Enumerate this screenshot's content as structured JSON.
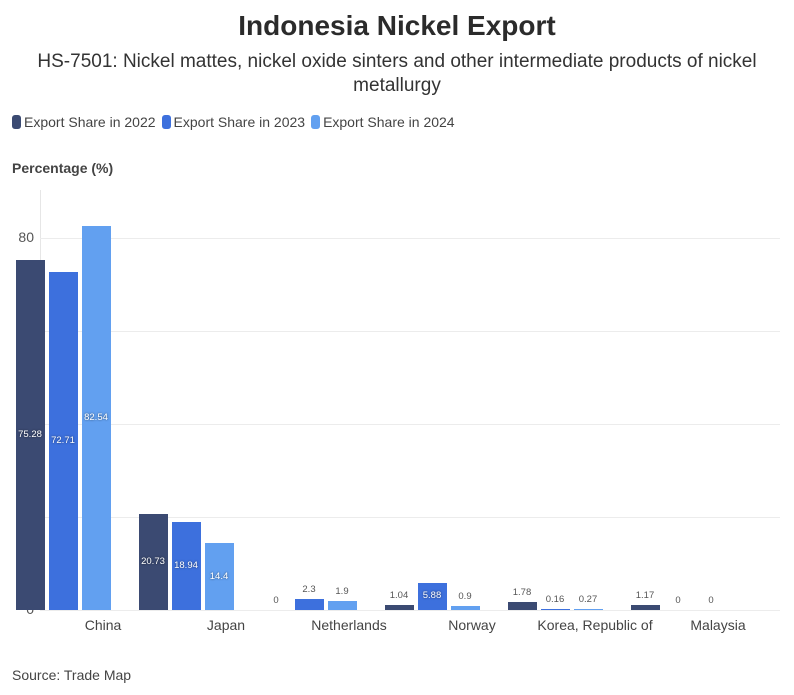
{
  "title": "Indonesia Nickel Export",
  "subtitle": "HS-7501: Nickel mattes, nickel oxide sinters and other intermediate products of nickel metallurgy",
  "legend": [
    {
      "label": "Export Share in 2022",
      "color": "#3b4a72"
    },
    {
      "label": "Export Share in 2023",
      "color": "#3d70dd"
    },
    {
      "label": "Export Share in 2024",
      "color": "#62a0f0"
    }
  ],
  "y_axis_label": "Percentage (%)",
  "y_ticks": [
    "0",
    "20",
    "40",
    "60",
    "80"
  ],
  "source": "Source: Trade Map",
  "chart_data": {
    "type": "bar",
    "title": "Indonesia Nickel Export",
    "subtitle": "HS-7501: Nickel mattes, nickel oxide sinters and other intermediate products of nickel metallurgy",
    "xlabel": "",
    "ylabel": "Percentage (%)",
    "ylim": [
      0,
      90
    ],
    "grid": true,
    "legend_position": "top-left",
    "categories": [
      "China",
      "Japan",
      "Netherlands",
      "Norway",
      "Korea, Republic of",
      "Malaysia"
    ],
    "series": [
      {
        "name": "Export Share in 2022",
        "values": [
          75.28,
          20.73,
          0,
          1.04,
          1.78,
          1.17
        ]
      },
      {
        "name": "Export Share in 2023",
        "values": [
          72.71,
          18.94,
          2.3,
          5.88,
          0.16,
          0
        ]
      },
      {
        "name": "Export Share in 2024",
        "values": [
          82.54,
          14.4,
          1.9,
          0.9,
          0.27,
          0
        ]
      }
    ]
  }
}
